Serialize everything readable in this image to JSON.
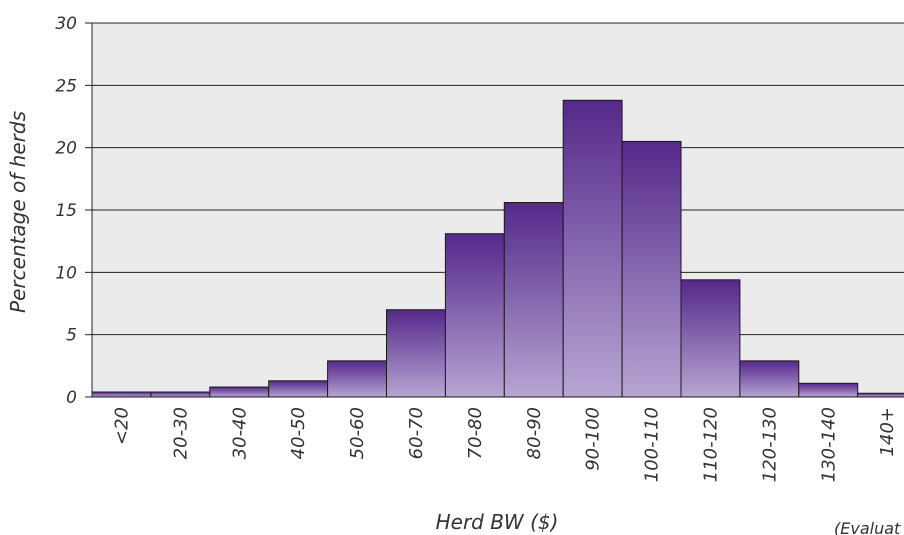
{
  "chart_data": {
    "type": "bar",
    "categories": [
      "<20",
      "20-30",
      "30-40",
      "40-50",
      "50-60",
      "60-70",
      "70-80",
      "80-90",
      "90-100",
      "100-110",
      "110-120",
      "120-130",
      "130-140",
      "140+"
    ],
    "series": [
      {
        "values": [
          0.4,
          0.4,
          0.8,
          1.3,
          2.9,
          7.0,
          13.1,
          15.6,
          23.8,
          20.5,
          9.4,
          2.9,
          1.1,
          0.3
        ]
      }
    ],
    "yticks": [
      "0",
      "5",
      "10",
      "15",
      "20",
      "25",
      "30"
    ],
    "ylim": [
      0,
      30
    ],
    "xlabel": "Herd BW ($)",
    "ylabel": "Percentage of herds",
    "grid": true,
    "footnote": "(Evaluat"
  },
  "colors": {
    "plot_background": "#ebebeb",
    "bar_top": "#55288a",
    "bar_bottom": "#b7a6d3",
    "bar_stroke": "#1a1a1a",
    "grid": "#222222"
  }
}
